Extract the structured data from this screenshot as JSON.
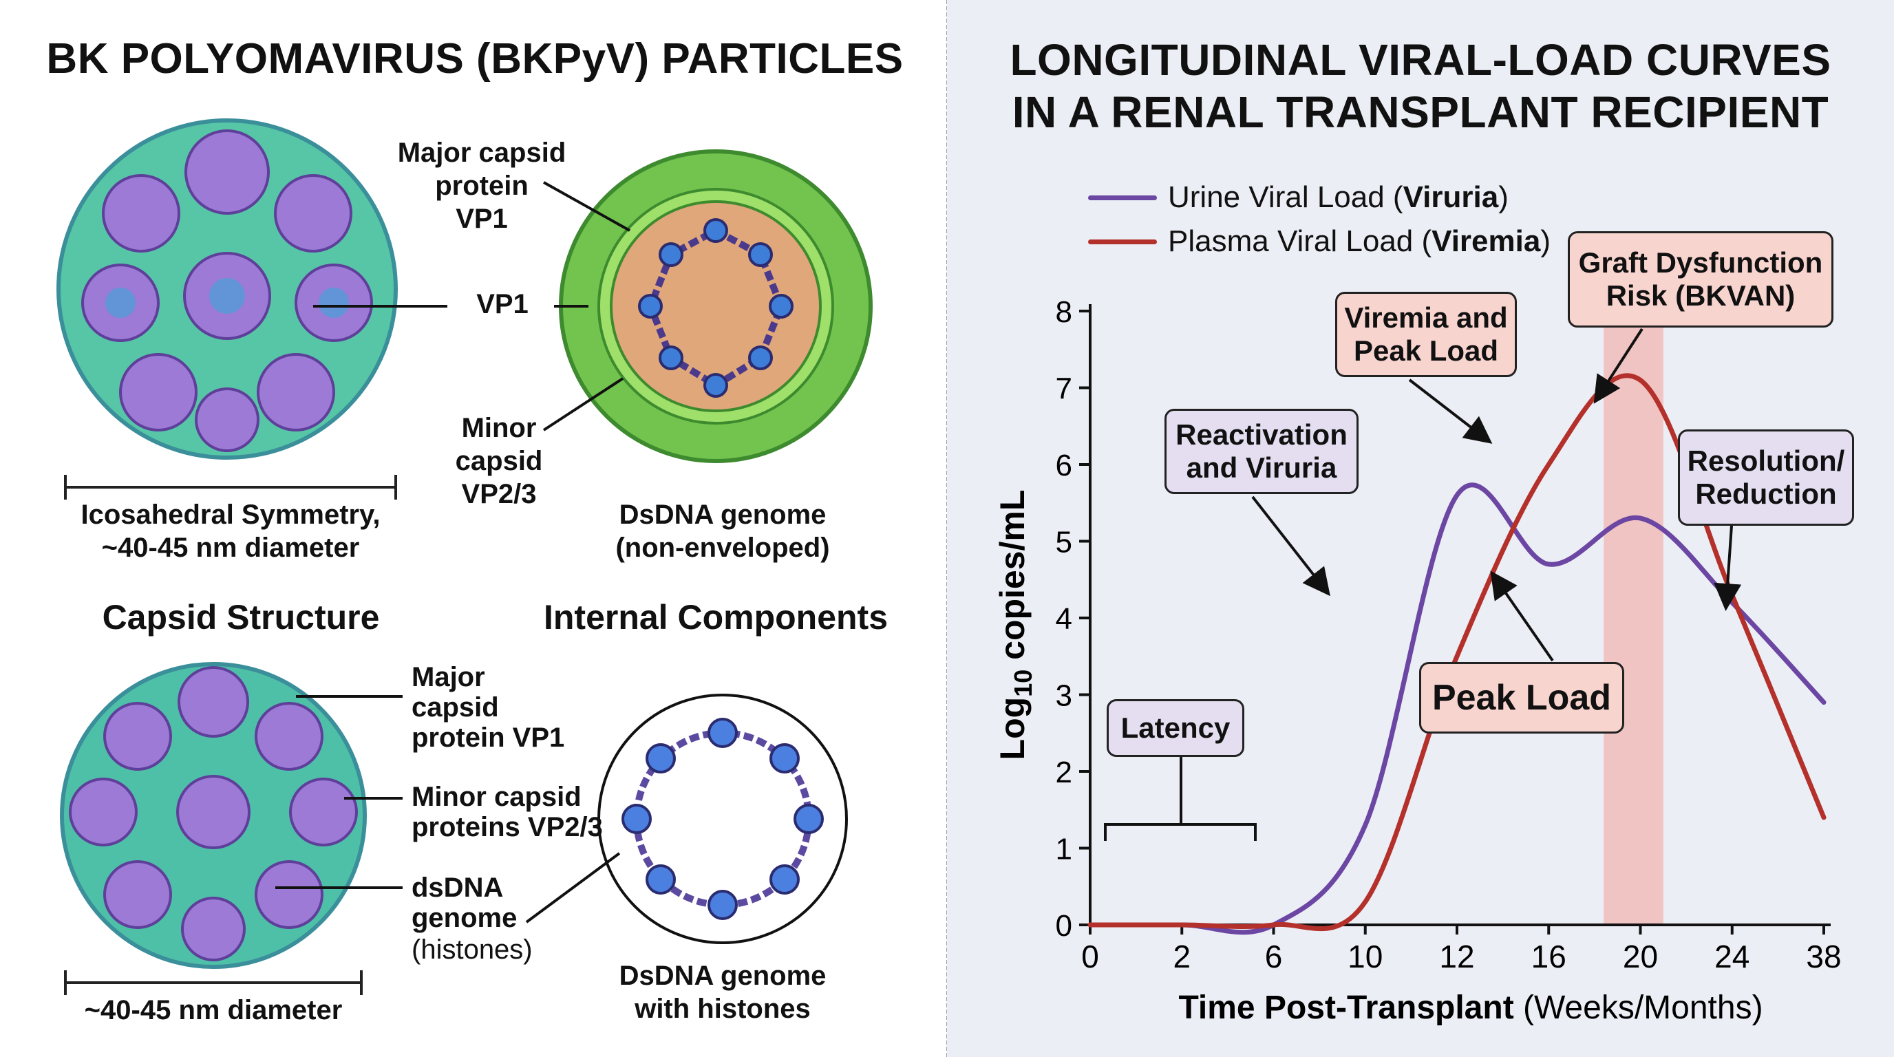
{
  "left_panel": {
    "title": "BK POLYOMAVIRUS (BKPyV) PARTICLES",
    "top": {
      "label_major": "Major capsid\nprotein\nVP1",
      "label_vp1": "VP1",
      "label_minor": "Minor\ncapsid\nVP2/3",
      "caption_left": "Icosahedral Symmetry,\n~40-45 nm diameter",
      "caption_right": "DsDNA genome\n(non-enveloped)"
    },
    "section_capsid": "Capsid Structure",
    "section_internal": "Internal Components",
    "bottom": {
      "label_major": "Major\ncapsid\nprotein VP1",
      "label_minor": "Minor capsid\nproteins VP2/3",
      "label_dsdna": "dsDNA\ngenome",
      "label_histones": "(histones)",
      "caption_left": "~40-45 nm diameter",
      "caption_right": "DsDNA genome\nwith histones"
    }
  },
  "right_panel": {
    "title_line1": "LONGITUDINAL VIRAL-LOAD CURVES",
    "title_line2": "IN A RENAL TRANSPLANT RECIPIENT",
    "legend": [
      {
        "prefix": "Urine Viral Load (",
        "bold": "Viruria",
        "suffix": ")",
        "color": "#6b46a3"
      },
      {
        "prefix": "Plasma Viral Load (",
        "bold": "Viremia",
        "suffix": ")",
        "color": "#b3302b"
      }
    ],
    "annotations": {
      "latency": "Latency",
      "reactivation": "Reactivation\nand Viruria",
      "viremia_peak": "Viremia and\nPeak Load",
      "graft": "Graft Dysfunction\nRisk (BKVAN)",
      "resolution": "Resolution/\nReduction",
      "peak_load": "Peak Load"
    }
  },
  "chart_data": {
    "type": "line",
    "ylabel_base": "Log",
    "ylabel_sub": "10",
    "ylabel_rest": " copies/mL",
    "xlabel_bold": "Time Post-Transplant",
    "xlabel_normal": " (Weeks/Months)",
    "ylim": [
      0,
      8
    ],
    "yticks": [
      "0",
      "1",
      "2",
      "3",
      "4",
      "5",
      "6",
      "7",
      "8"
    ],
    "xticks": [
      "0",
      "2",
      "6",
      "10",
      "12",
      "16",
      "20",
      "24",
      "38"
    ],
    "series": [
      {
        "name": "Urine Viral Load (Viruria)",
        "color": "#6b46a3",
        "x": [
          0,
          1,
          2,
          3,
          4,
          5,
          6,
          7,
          8
        ],
        "values": [
          0,
          0,
          0,
          1.3,
          5.6,
          4.7,
          5.3,
          4.2,
          2.9
        ]
      },
      {
        "name": "Plasma Viral Load (Viremia)",
        "color": "#b3302b",
        "x": [
          0,
          1,
          2,
          3,
          4,
          5,
          6,
          7,
          8
        ],
        "values": [
          0,
          0,
          0,
          0.3,
          3.5,
          6.0,
          7.1,
          4.3,
          1.4
        ]
      }
    ],
    "highlight_band": {
      "from_x": 5.6,
      "to_x": 6.25,
      "color": "#f2b6b0"
    }
  }
}
